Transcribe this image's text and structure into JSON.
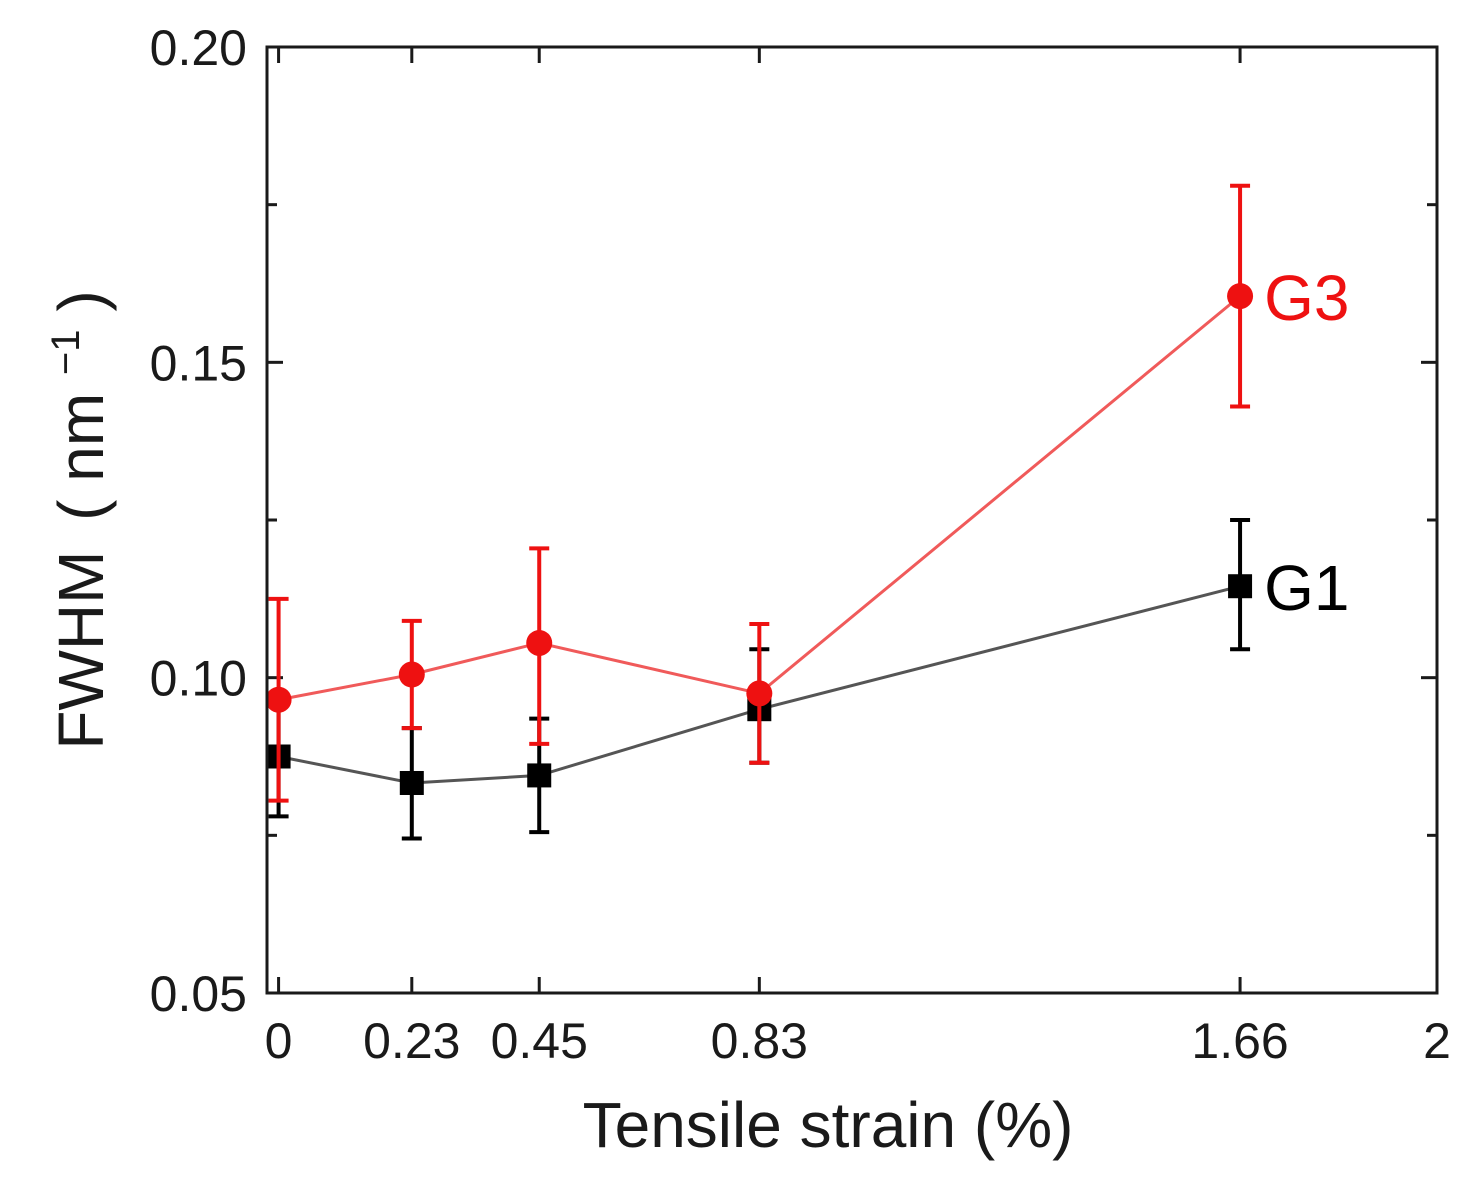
{
  "chart_data": {
    "type": "line",
    "xlabel": "Tensile strain (%)",
    "ylabel": "FWHM",
    "ylabel_unit_base": "nm",
    "ylabel_unit_exp": "−1",
    "xlim": [
      -0.02,
      2
    ],
    "ylim": [
      0.05,
      0.2
    ],
    "x_ticks": [
      0,
      0.23,
      0.45,
      0.83,
      1.66,
      2
    ],
    "x_tick_labels": [
      "0",
      "0.23",
      "0.45",
      "0.83",
      "1.66",
      "2"
    ],
    "y_ticks": [
      0.05,
      0.1,
      0.15,
      0.2
    ],
    "y_tick_labels": [
      "0.05",
      "0.10",
      "0.15",
      "0.20"
    ],
    "y_minor_ticks": [
      0.075,
      0.125,
      0.175
    ],
    "grid": false,
    "series": [
      {
        "name": "G1",
        "color": "#000000",
        "line_color": "#555555",
        "marker": "square",
        "x": [
          0,
          0.23,
          0.45,
          0.83,
          1.66
        ],
        "y": [
          0.0875,
          0.0833,
          0.0845,
          0.095,
          0.1145
        ],
        "y_err_low": [
          0.078,
          0.0745,
          0.0755,
          0.0865,
          0.1045
        ],
        "y_err_high": [
          0.097,
          0.092,
          0.0935,
          0.1045,
          0.125
        ]
      },
      {
        "name": "G3",
        "color": "#ee1111",
        "line_color": "#f05a5a",
        "marker": "circle",
        "x": [
          0,
          0.23,
          0.45,
          0.83,
          1.66
        ],
        "y": [
          0.0965,
          0.1005,
          0.1055,
          0.0975,
          0.1605
        ],
        "y_err_low": [
          0.0805,
          0.092,
          0.0895,
          0.0865,
          0.143
        ],
        "y_err_high": [
          0.1125,
          0.109,
          0.1205,
          0.1085,
          0.178
        ]
      }
    ]
  }
}
